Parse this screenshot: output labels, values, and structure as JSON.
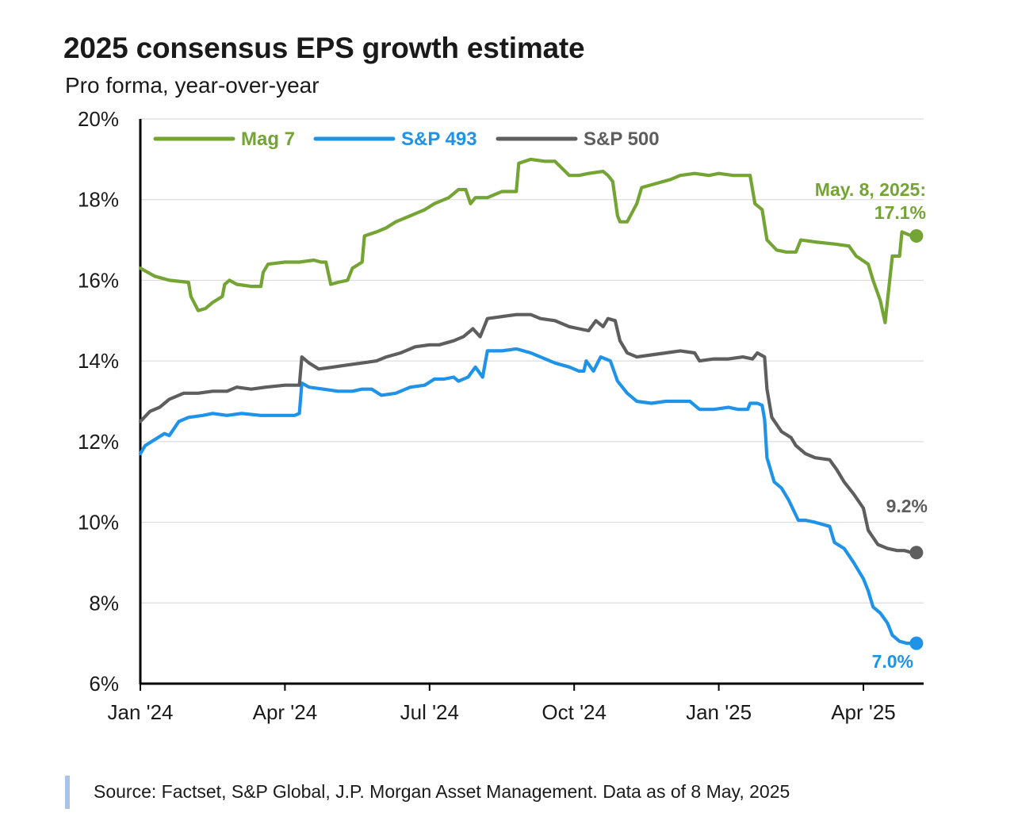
{
  "chart_data": {
    "type": "line",
    "title": "2025 consensus EPS growth estimate",
    "subtitle": "Pro forma, year-over-year",
    "xlabel": "",
    "ylabel": "",
    "x_unit": "months since Jan 1, 2024",
    "xlim": [
      0,
      16.25
    ],
    "ylim": [
      6,
      20
    ],
    "yticks": [
      6,
      8,
      10,
      12,
      14,
      16,
      18,
      20
    ],
    "ytick_labels": [
      "6%",
      "8%",
      "10%",
      "12%",
      "14%",
      "16%",
      "18%",
      "20%"
    ],
    "xticks": [
      0,
      3,
      6,
      9,
      12,
      15
    ],
    "xtick_labels": [
      "Jan '24",
      "Apr '24",
      "Jul '24",
      "Oct '24",
      "Jan '25",
      "Apr '25"
    ],
    "grid": true,
    "legend_position": "top-left",
    "series": [
      {
        "name": "Mag 7",
        "color": "#74a433",
        "points": [
          [
            0,
            16.3
          ],
          [
            0.3,
            16.1
          ],
          [
            0.6,
            16.0
          ],
          [
            1.0,
            15.95
          ],
          [
            1.05,
            15.6
          ],
          [
            1.2,
            15.25
          ],
          [
            1.35,
            15.3
          ],
          [
            1.5,
            15.45
          ],
          [
            1.7,
            15.6
          ],
          [
            1.75,
            15.9
          ],
          [
            1.85,
            16.0
          ],
          [
            2.0,
            15.9
          ],
          [
            2.3,
            15.85
          ],
          [
            2.5,
            15.85
          ],
          [
            2.55,
            16.2
          ],
          [
            2.65,
            16.4
          ],
          [
            3.0,
            16.45
          ],
          [
            3.3,
            16.45
          ],
          [
            3.6,
            16.5
          ],
          [
            3.75,
            16.45
          ],
          [
            3.85,
            16.45
          ],
          [
            3.95,
            15.9
          ],
          [
            4.1,
            15.95
          ],
          [
            4.3,
            16.0
          ],
          [
            4.4,
            16.3
          ],
          [
            4.6,
            16.45
          ],
          [
            4.65,
            17.1
          ],
          [
            4.9,
            17.2
          ],
          [
            5.1,
            17.3
          ],
          [
            5.3,
            17.45
          ],
          [
            5.6,
            17.6
          ],
          [
            5.9,
            17.75
          ],
          [
            6.1,
            17.9
          ],
          [
            6.4,
            18.05
          ],
          [
            6.6,
            18.25
          ],
          [
            6.75,
            18.25
          ],
          [
            6.85,
            17.9
          ],
          [
            6.95,
            18.05
          ],
          [
            7.2,
            18.05
          ],
          [
            7.5,
            18.2
          ],
          [
            7.8,
            18.2
          ],
          [
            7.85,
            18.9
          ],
          [
            8.1,
            19.0
          ],
          [
            8.4,
            18.95
          ],
          [
            8.6,
            18.95
          ],
          [
            8.9,
            18.6
          ],
          [
            9.1,
            18.6
          ],
          [
            9.3,
            18.65
          ],
          [
            9.6,
            18.7
          ],
          [
            9.7,
            18.6
          ],
          [
            9.8,
            18.45
          ],
          [
            9.9,
            17.6
          ],
          [
            9.95,
            17.45
          ],
          [
            10.1,
            17.45
          ],
          [
            10.3,
            17.9
          ],
          [
            10.4,
            18.3
          ],
          [
            10.7,
            18.4
          ],
          [
            11.0,
            18.5
          ],
          [
            11.2,
            18.6
          ],
          [
            11.5,
            18.65
          ],
          [
            11.8,
            18.6
          ],
          [
            12.0,
            18.65
          ],
          [
            12.3,
            18.6
          ],
          [
            12.5,
            18.6
          ],
          [
            12.65,
            18.6
          ],
          [
            12.75,
            17.9
          ],
          [
            12.9,
            17.75
          ],
          [
            13.0,
            17.0
          ],
          [
            13.2,
            16.75
          ],
          [
            13.4,
            16.7
          ],
          [
            13.6,
            16.7
          ],
          [
            13.7,
            17.0
          ],
          [
            14.0,
            16.95
          ],
          [
            14.4,
            16.9
          ],
          [
            14.7,
            16.85
          ],
          [
            14.85,
            16.6
          ],
          [
            15.1,
            16.4
          ],
          [
            15.2,
            16.0
          ],
          [
            15.35,
            15.5
          ],
          [
            15.45,
            14.95
          ],
          [
            15.5,
            15.5
          ],
          [
            15.6,
            16.6
          ],
          [
            15.75,
            16.6
          ],
          [
            15.8,
            17.2
          ],
          [
            15.9,
            17.15
          ],
          [
            16.0,
            17.1
          ],
          [
            16.1,
            17.1
          ]
        ],
        "end_label": "May. 8, 2025:",
        "end_value_label": "17.1%"
      },
      {
        "name": "S&P 493",
        "color": "#1f93e8",
        "points": [
          [
            0,
            11.7
          ],
          [
            0.1,
            11.9
          ],
          [
            0.3,
            12.05
          ],
          [
            0.5,
            12.2
          ],
          [
            0.6,
            12.15
          ],
          [
            0.8,
            12.5
          ],
          [
            1.0,
            12.6
          ],
          [
            1.3,
            12.65
          ],
          [
            1.5,
            12.7
          ],
          [
            1.8,
            12.65
          ],
          [
            2.1,
            12.7
          ],
          [
            2.5,
            12.65
          ],
          [
            2.9,
            12.65
          ],
          [
            3.2,
            12.65
          ],
          [
            3.3,
            12.7
          ],
          [
            3.35,
            13.45
          ],
          [
            3.5,
            13.35
          ],
          [
            3.8,
            13.3
          ],
          [
            4.1,
            13.25
          ],
          [
            4.4,
            13.25
          ],
          [
            4.6,
            13.3
          ],
          [
            4.8,
            13.3
          ],
          [
            5.0,
            13.15
          ],
          [
            5.3,
            13.2
          ],
          [
            5.6,
            13.35
          ],
          [
            5.9,
            13.4
          ],
          [
            6.1,
            13.55
          ],
          [
            6.3,
            13.55
          ],
          [
            6.5,
            13.6
          ],
          [
            6.6,
            13.5
          ],
          [
            6.8,
            13.6
          ],
          [
            6.95,
            13.85
          ],
          [
            7.1,
            13.6
          ],
          [
            7.2,
            14.25
          ],
          [
            7.5,
            14.25
          ],
          [
            7.8,
            14.3
          ],
          [
            8.1,
            14.2
          ],
          [
            8.3,
            14.1
          ],
          [
            8.6,
            13.95
          ],
          [
            8.9,
            13.85
          ],
          [
            9.1,
            13.75
          ],
          [
            9.2,
            13.75
          ],
          [
            9.25,
            14.0
          ],
          [
            9.4,
            13.75
          ],
          [
            9.55,
            14.1
          ],
          [
            9.75,
            14.0
          ],
          [
            9.9,
            13.5
          ],
          [
            10.1,
            13.2
          ],
          [
            10.3,
            13.0
          ],
          [
            10.6,
            12.95
          ],
          [
            10.9,
            13.0
          ],
          [
            11.1,
            13.0
          ],
          [
            11.4,
            13.0
          ],
          [
            11.6,
            12.8
          ],
          [
            11.9,
            12.8
          ],
          [
            12.2,
            12.85
          ],
          [
            12.4,
            12.8
          ],
          [
            12.6,
            12.8
          ],
          [
            12.65,
            12.95
          ],
          [
            12.8,
            12.95
          ],
          [
            12.9,
            12.9
          ],
          [
            12.95,
            12.55
          ],
          [
            13.0,
            11.6
          ],
          [
            13.15,
            11.0
          ],
          [
            13.3,
            10.85
          ],
          [
            13.45,
            10.55
          ],
          [
            13.65,
            10.05
          ],
          [
            13.8,
            10.05
          ],
          [
            14.0,
            10.0
          ],
          [
            14.3,
            9.9
          ],
          [
            14.4,
            9.5
          ],
          [
            14.6,
            9.35
          ],
          [
            14.8,
            9.0
          ],
          [
            15.0,
            8.6
          ],
          [
            15.1,
            8.3
          ],
          [
            15.2,
            7.9
          ],
          [
            15.35,
            7.75
          ],
          [
            15.5,
            7.5
          ],
          [
            15.6,
            7.2
          ],
          [
            15.75,
            7.05
          ],
          [
            15.9,
            7.0
          ],
          [
            16.1,
            7.0
          ]
        ],
        "end_value_label": "7.0%"
      },
      {
        "name": "S&P 500",
        "color": "#5e5e5e",
        "points": [
          [
            0,
            12.5
          ],
          [
            0.2,
            12.75
          ],
          [
            0.4,
            12.85
          ],
          [
            0.6,
            13.05
          ],
          [
            0.9,
            13.2
          ],
          [
            1.2,
            13.2
          ],
          [
            1.5,
            13.25
          ],
          [
            1.8,
            13.25
          ],
          [
            2.0,
            13.35
          ],
          [
            2.3,
            13.3
          ],
          [
            2.6,
            13.35
          ],
          [
            3.0,
            13.4
          ],
          [
            3.3,
            13.4
          ],
          [
            3.35,
            14.1
          ],
          [
            3.5,
            13.95
          ],
          [
            3.7,
            13.8
          ],
          [
            4.0,
            13.85
          ],
          [
            4.3,
            13.9
          ],
          [
            4.6,
            13.95
          ],
          [
            4.9,
            14.0
          ],
          [
            5.1,
            14.1
          ],
          [
            5.4,
            14.2
          ],
          [
            5.7,
            14.35
          ],
          [
            6.0,
            14.4
          ],
          [
            6.2,
            14.4
          ],
          [
            6.5,
            14.5
          ],
          [
            6.7,
            14.6
          ],
          [
            6.9,
            14.8
          ],
          [
            7.05,
            14.6
          ],
          [
            7.2,
            15.05
          ],
          [
            7.5,
            15.1
          ],
          [
            7.8,
            15.15
          ],
          [
            8.1,
            15.15
          ],
          [
            8.3,
            15.05
          ],
          [
            8.6,
            15.0
          ],
          [
            8.9,
            14.85
          ],
          [
            9.1,
            14.8
          ],
          [
            9.3,
            14.75
          ],
          [
            9.45,
            15.0
          ],
          [
            9.6,
            14.85
          ],
          [
            9.7,
            15.05
          ],
          [
            9.85,
            15.0
          ],
          [
            9.95,
            14.5
          ],
          [
            10.1,
            14.2
          ],
          [
            10.3,
            14.1
          ],
          [
            10.6,
            14.15
          ],
          [
            10.9,
            14.2
          ],
          [
            11.2,
            14.25
          ],
          [
            11.5,
            14.2
          ],
          [
            11.6,
            14.0
          ],
          [
            11.9,
            14.05
          ],
          [
            12.2,
            14.05
          ],
          [
            12.5,
            14.1
          ],
          [
            12.7,
            14.05
          ],
          [
            12.8,
            14.2
          ],
          [
            12.95,
            14.1
          ],
          [
            13.0,
            13.3
          ],
          [
            13.1,
            12.6
          ],
          [
            13.3,
            12.25
          ],
          [
            13.5,
            12.1
          ],
          [
            13.6,
            11.9
          ],
          [
            13.8,
            11.7
          ],
          [
            14.0,
            11.6
          ],
          [
            14.3,
            11.55
          ],
          [
            14.45,
            11.3
          ],
          [
            14.6,
            11.0
          ],
          [
            14.8,
            10.7
          ],
          [
            15.0,
            10.35
          ],
          [
            15.1,
            9.8
          ],
          [
            15.3,
            9.45
          ],
          [
            15.5,
            9.35
          ],
          [
            15.7,
            9.3
          ],
          [
            15.85,
            9.3
          ],
          [
            16.0,
            9.25
          ],
          [
            16.1,
            9.25
          ]
        ],
        "end_value_label": "9.2%"
      }
    ]
  },
  "source": "Source: Factset, S&P Global, J.P. Morgan Asset Management. Data as of 8 May, 2025"
}
